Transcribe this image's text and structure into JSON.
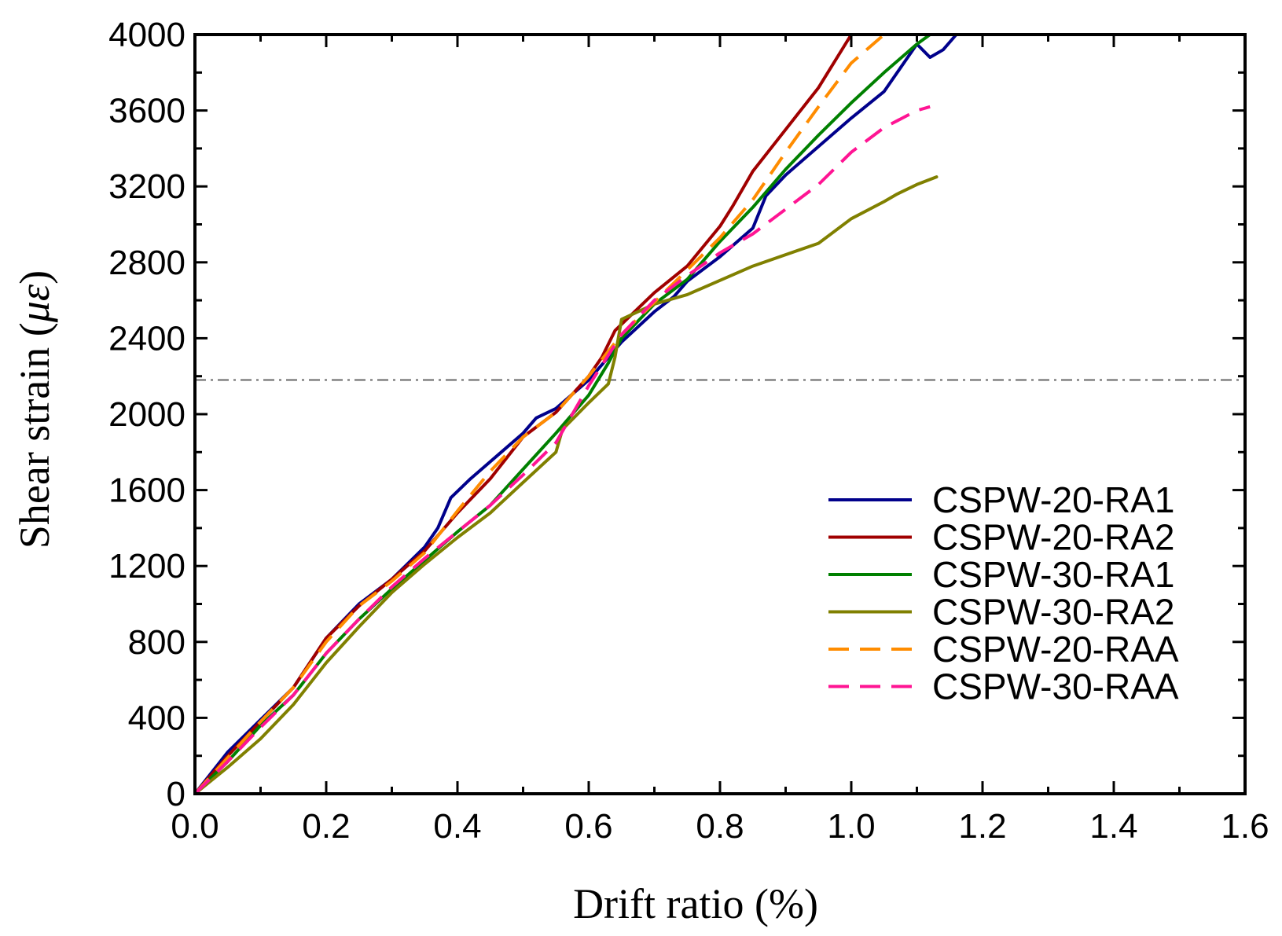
{
  "chart_data": {
    "type": "line",
    "title": "",
    "xlabel": "Drift ratio (%)",
    "ylabel_prefix": "Shear strain (",
    "ylabel_symbol": "με",
    "ylabel_suffix": ")",
    "xlim": [
      0.0,
      1.6
    ],
    "ylim": [
      0,
      4000
    ],
    "xticks": [
      "0.0",
      "0.2",
      "0.4",
      "0.6",
      "0.8",
      "1.0",
      "1.2",
      "1.4",
      "1.6"
    ],
    "yticks": [
      "0",
      "400",
      "800",
      "1200",
      "1600",
      "2000",
      "2400",
      "2800",
      "3200",
      "3600",
      "4000"
    ],
    "grid": false,
    "legend_position": "bottom-right",
    "reference_line": {
      "y": 2180,
      "style": "dash-dot",
      "color": "#666666"
    },
    "series": [
      {
        "name": "CSPW-20-RA1",
        "color": "#00008B",
        "dash": "solid",
        "points": [
          [
            0,
            0
          ],
          [
            0.05,
            220
          ],
          [
            0.1,
            390
          ],
          [
            0.15,
            560
          ],
          [
            0.2,
            820
          ],
          [
            0.25,
            1000
          ],
          [
            0.3,
            1130
          ],
          [
            0.35,
            1300
          ],
          [
            0.37,
            1400
          ],
          [
            0.39,
            1560
          ],
          [
            0.42,
            1660
          ],
          [
            0.45,
            1750
          ],
          [
            0.5,
            1900
          ],
          [
            0.52,
            1980
          ],
          [
            0.55,
            2030
          ],
          [
            0.6,
            2180
          ],
          [
            0.63,
            2300
          ],
          [
            0.65,
            2380
          ],
          [
            0.7,
            2540
          ],
          [
            0.73,
            2620
          ],
          [
            0.75,
            2700
          ],
          [
            0.8,
            2830
          ],
          [
            0.85,
            2980
          ],
          [
            0.87,
            3150
          ],
          [
            0.9,
            3260
          ],
          [
            1.0,
            3560
          ],
          [
            1.05,
            3700
          ],
          [
            1.08,
            3850
          ],
          [
            1.1,
            3950
          ],
          [
            1.12,
            3880
          ],
          [
            1.14,
            3920
          ],
          [
            1.16,
            4000
          ]
        ]
      },
      {
        "name": "CSPW-20-RA2",
        "color": "#A00000",
        "dash": "solid",
        "points": [
          [
            0,
            0
          ],
          [
            0.05,
            200
          ],
          [
            0.1,
            380
          ],
          [
            0.15,
            560
          ],
          [
            0.2,
            820
          ],
          [
            0.25,
            990
          ],
          [
            0.3,
            1130
          ],
          [
            0.35,
            1280
          ],
          [
            0.4,
            1480
          ],
          [
            0.45,
            1660
          ],
          [
            0.5,
            1880
          ],
          [
            0.55,
            2010
          ],
          [
            0.6,
            2200
          ],
          [
            0.62,
            2300
          ],
          [
            0.64,
            2440
          ],
          [
            0.7,
            2640
          ],
          [
            0.75,
            2780
          ],
          [
            0.8,
            2990
          ],
          [
            0.82,
            3100
          ],
          [
            0.85,
            3280
          ],
          [
            0.9,
            3500
          ],
          [
            0.95,
            3720
          ],
          [
            1.0,
            4000
          ]
        ]
      },
      {
        "name": "CSPW-30-RA1",
        "color": "#008000",
        "dash": "solid",
        "points": [
          [
            0,
            0
          ],
          [
            0.05,
            170
          ],
          [
            0.1,
            360
          ],
          [
            0.15,
            520
          ],
          [
            0.2,
            740
          ],
          [
            0.25,
            920
          ],
          [
            0.3,
            1080
          ],
          [
            0.35,
            1230
          ],
          [
            0.4,
            1380
          ],
          [
            0.45,
            1520
          ],
          [
            0.5,
            1710
          ],
          [
            0.55,
            1900
          ],
          [
            0.6,
            2100
          ],
          [
            0.63,
            2270
          ],
          [
            0.65,
            2400
          ],
          [
            0.7,
            2580
          ],
          [
            0.75,
            2710
          ],
          [
            0.8,
            2910
          ],
          [
            0.85,
            3090
          ],
          [
            0.9,
            3290
          ],
          [
            0.95,
            3470
          ],
          [
            1.0,
            3640
          ],
          [
            1.05,
            3800
          ],
          [
            1.1,
            3950
          ],
          [
            1.12,
            4000
          ]
        ]
      },
      {
        "name": "CSPW-30-RA2",
        "color": "#808000",
        "dash": "solid",
        "points": [
          [
            0,
            0
          ],
          [
            0.05,
            140
          ],
          [
            0.1,
            290
          ],
          [
            0.15,
            470
          ],
          [
            0.2,
            690
          ],
          [
            0.25,
            880
          ],
          [
            0.3,
            1060
          ],
          [
            0.35,
            1210
          ],
          [
            0.4,
            1350
          ],
          [
            0.45,
            1480
          ],
          [
            0.5,
            1640
          ],
          [
            0.55,
            1800
          ],
          [
            0.56,
            1920
          ],
          [
            0.6,
            2060
          ],
          [
            0.63,
            2160
          ],
          [
            0.64,
            2300
          ],
          [
            0.65,
            2500
          ],
          [
            0.7,
            2580
          ],
          [
            0.75,
            2630
          ],
          [
            0.85,
            2780
          ],
          [
            0.95,
            2900
          ],
          [
            1.0,
            3030
          ],
          [
            1.05,
            3120
          ],
          [
            1.07,
            3160
          ],
          [
            1.1,
            3210
          ],
          [
            1.13,
            3250
          ]
        ]
      },
      {
        "name": "CSPW-20-RAA",
        "color": "#FF8C00",
        "dash": "dashed",
        "points": [
          [
            0,
            0
          ],
          [
            0.05,
            190
          ],
          [
            0.1,
            380
          ],
          [
            0.15,
            560
          ],
          [
            0.2,
            800
          ],
          [
            0.25,
            990
          ],
          [
            0.3,
            1120
          ],
          [
            0.35,
            1270
          ],
          [
            0.4,
            1490
          ],
          [
            0.45,
            1700
          ],
          [
            0.5,
            1880
          ],
          [
            0.55,
            2010
          ],
          [
            0.6,
            2200
          ],
          [
            0.65,
            2420
          ],
          [
            0.7,
            2590
          ],
          [
            0.75,
            2760
          ],
          [
            0.8,
            2930
          ],
          [
            0.85,
            3130
          ],
          [
            0.9,
            3380
          ],
          [
            0.95,
            3620
          ],
          [
            1.0,
            3850
          ],
          [
            1.05,
            4000
          ]
        ]
      },
      {
        "name": "CSPW-30-RAA",
        "color": "#FF1493",
        "dash": "dashed",
        "points": [
          [
            0,
            0
          ],
          [
            0.05,
            170
          ],
          [
            0.1,
            350
          ],
          [
            0.15,
            520
          ],
          [
            0.2,
            740
          ],
          [
            0.25,
            920
          ],
          [
            0.3,
            1090
          ],
          [
            0.35,
            1240
          ],
          [
            0.4,
            1380
          ],
          [
            0.45,
            1520
          ],
          [
            0.5,
            1680
          ],
          [
            0.55,
            1850
          ],
          [
            0.6,
            2150
          ],
          [
            0.65,
            2420
          ],
          [
            0.7,
            2600
          ],
          [
            0.75,
            2730
          ],
          [
            0.8,
            2850
          ],
          [
            0.85,
            2950
          ],
          [
            0.9,
            3080
          ],
          [
            0.95,
            3210
          ],
          [
            1.0,
            3380
          ],
          [
            1.05,
            3510
          ],
          [
            1.1,
            3600
          ],
          [
            1.12,
            3620
          ]
        ]
      }
    ]
  }
}
